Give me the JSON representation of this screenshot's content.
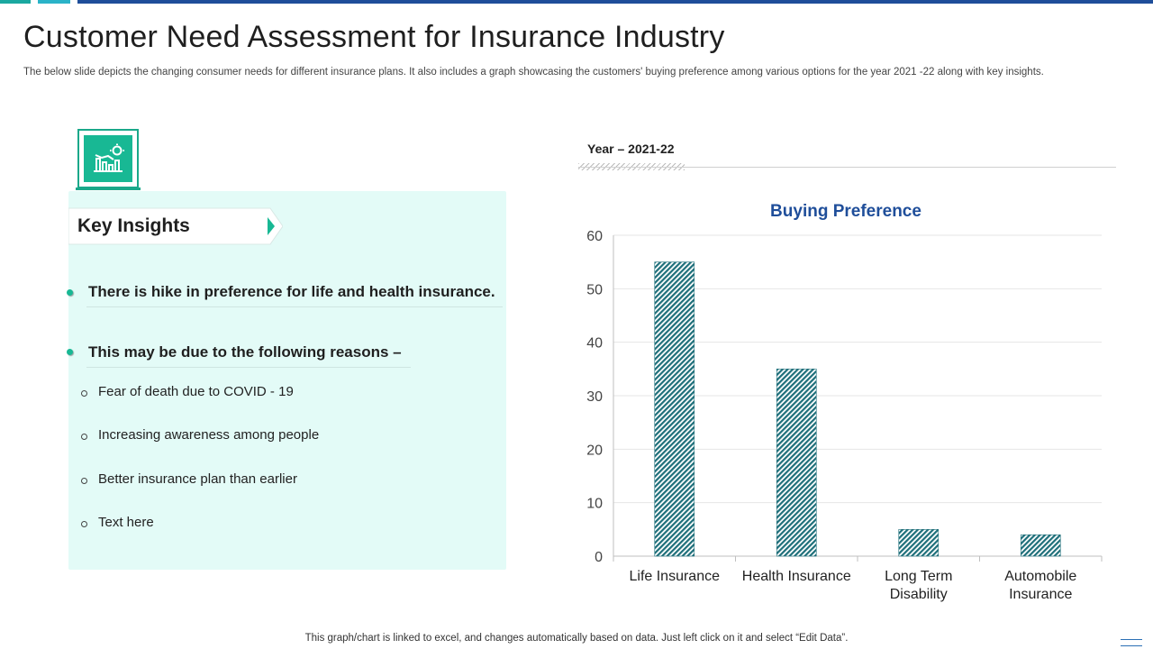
{
  "header": {
    "title": "Customer Need Assessment for Insurance Industry",
    "subtitle": "The below slide depicts the changing consumer needs for different insurance plans. It also includes a graph showcasing the customers' buying preference among various options for the year 2021 -22 along with key insights."
  },
  "colors": {
    "accent_teal": "#18b894",
    "accent_blue": "#1f4e9a",
    "topbar_1": "#1aa8a0",
    "topbar_2": "#2ab3c8",
    "topbar_3": "#1f4e9a",
    "bar_fill": "#1e6f7a"
  },
  "insights": {
    "icon": "chart-lightbulb-icon",
    "heading": "Key Insights",
    "points": [
      "There is hike in preference for life and health insurance.",
      "This may be due to the following reasons –"
    ],
    "reasons": [
      "Fear of death due to COVID - 19",
      "Increasing awareness among people",
      "Better insurance plan than earlier",
      "Text here"
    ]
  },
  "year": {
    "label": "Year – 2021-22"
  },
  "chart_data": {
    "type": "bar",
    "title": "Buying Preference",
    "categories": [
      "Life Insurance",
      "Health Insurance",
      "Long Term Disability",
      "Automobile Insurance"
    ],
    "category_lines": [
      [
        "Life Insurance"
      ],
      [
        "Health Insurance"
      ],
      [
        "Long Term",
        "Disability"
      ],
      [
        "Automobile",
        "Insurance"
      ]
    ],
    "values": [
      55,
      35,
      5,
      4
    ],
    "ylim": [
      0,
      60
    ],
    "yticks": [
      0,
      10,
      20,
      30,
      40,
      50,
      60
    ],
    "xlabel": "",
    "ylabel": "",
    "grid": true,
    "legend": "none"
  },
  "footer": {
    "note": "This graph/chart is linked to excel, and changes automatically based on data. Just left click on it and select “Edit Data”."
  }
}
